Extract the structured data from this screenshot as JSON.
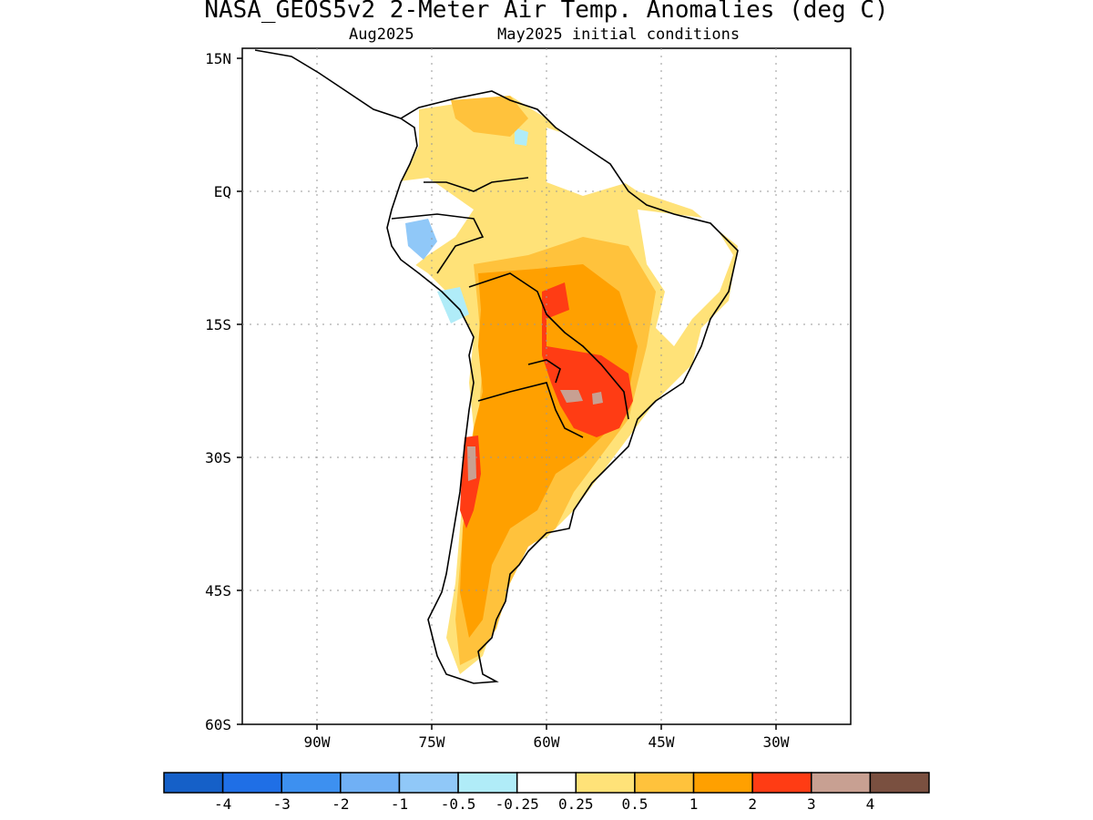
{
  "header": {
    "title": "NASA_GEOS5v2 2-Meter Air Temp. Anomalies (deg C)",
    "valid_month": "Aug2025",
    "init_conditions": "May2025 initial conditions"
  },
  "map": {
    "lat_ticks": [
      "15N",
      "EQ",
      "15S",
      "30S",
      "45S",
      "60S"
    ],
    "lon_ticks": [
      "90W",
      "75W",
      "60W",
      "45W",
      "30W"
    ],
    "lat_range": [
      -60,
      15
    ],
    "lon_range": [
      -100,
      -20
    ],
    "gridlines": true,
    "region": "South America"
  },
  "colorbar": {
    "labels": [
      "-4",
      "-3",
      "-2",
      "-1",
      "-0.5",
      "-0.25",
      "0.25",
      "0.5",
      "1",
      "2",
      "3",
      "4"
    ],
    "colors": [
      "#1560c8",
      "#1f6fe6",
      "#3d90f0",
      "#70b0f5",
      "#90c8f8",
      "#b0ecf8",
      "#ffffff",
      "#ffe278",
      "#ffc23c",
      "#ffa000",
      "#ff3c14",
      "#c8a092",
      "#7a5040"
    ]
  }
}
